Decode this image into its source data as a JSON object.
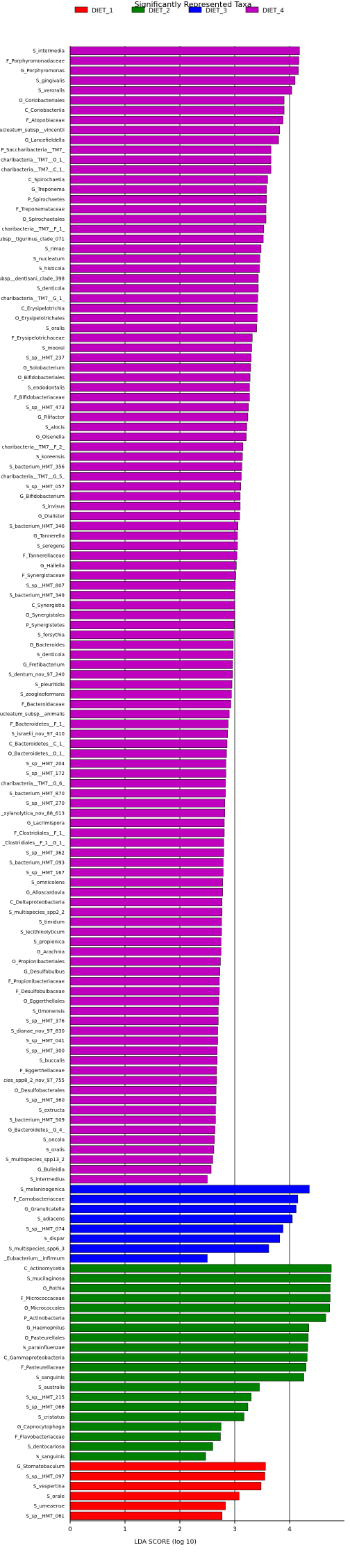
{
  "chart_data": {
    "type": "bar",
    "orientation": "horizontal",
    "title": "Significantly Represented Taxa",
    "xlabel": "LDA SCORE (log 10)",
    "ylabel": "",
    "xlim": [
      0,
      5.0
    ],
    "xticks": [
      0,
      1,
      2,
      3,
      4
    ],
    "grid": "vertical",
    "legend_position": "top",
    "colors": {
      "DIET_1": "#ff0000",
      "DIET_2": "#008000",
      "DIET_3": "#0000ff",
      "DIET_4": "#bf00bf"
    },
    "series": [
      {
        "name": "DIET_1",
        "color": "#ff0000"
      },
      {
        "name": "DIET_2",
        "color": "#008000"
      },
      {
        "name": "DIET_3",
        "color": "#0000ff"
      },
      {
        "name": "DIET_4",
        "color": "#bf00bf"
      }
    ],
    "bars": [
      {
        "label": "S_intermedia",
        "value": 4.18,
        "group": "DIET_4"
      },
      {
        "label": "F_Porphyromonadaceae",
        "value": 4.17,
        "group": "DIET_4"
      },
      {
        "label": "G_Porphyromonas",
        "value": 4.16,
        "group": "DIET_4"
      },
      {
        "label": "S_gingivalis",
        "value": 4.1,
        "group": "DIET_4"
      },
      {
        "label": "S_veroralis",
        "value": 4.04,
        "group": "DIET_4"
      },
      {
        "label": "O_Coriobacteriales",
        "value": 3.9,
        "group": "DIET_4"
      },
      {
        "label": "C_Coriobacteriia",
        "value": 3.9,
        "group": "DIET_4"
      },
      {
        "label": "F_Atopobiaceae",
        "value": 3.88,
        "group": "DIET_4"
      },
      {
        "label": "nucleatum_subsp__vincentii",
        "value": 3.82,
        "group": "DIET_4"
      },
      {
        "label": "G_Lancefieldella",
        "value": 3.8,
        "group": "DIET_4"
      },
      {
        "label": "P_Saccharibacteria__TM7_",
        "value": 3.66,
        "group": "DIET_4"
      },
      {
        "label": "charibacteria__TM7__O_1_",
        "value": 3.66,
        "group": "DIET_4"
      },
      {
        "label": "charibacteria__TM7__C_1_",
        "value": 3.66,
        "group": "DIET_4"
      },
      {
        "label": "C_Spirochaetia",
        "value": 3.6,
        "group": "DIET_4"
      },
      {
        "label": "G_Treponema",
        "value": 3.58,
        "group": "DIET_4"
      },
      {
        "label": "P_Spirochaetes",
        "value": 3.58,
        "group": "DIET_4"
      },
      {
        "label": "F_Treponemataceae",
        "value": 3.57,
        "group": "DIET_4"
      },
      {
        "label": "O_Spirochaetales",
        "value": 3.57,
        "group": "DIET_4"
      },
      {
        "label": "charibacteria__TM7__F_1_",
        "value": 3.53,
        "group": "DIET_4"
      },
      {
        "label": "subsp__tigurinus_clade_071",
        "value": 3.52,
        "group": "DIET_4"
      },
      {
        "label": "S_rimae",
        "value": 3.48,
        "group": "DIET_4"
      },
      {
        "label": "S_nucleatum",
        "value": 3.46,
        "group": "DIET_4"
      },
      {
        "label": "S_histicola",
        "value": 3.45,
        "group": "DIET_4"
      },
      {
        "label": "subsp__dentisani_clade_398",
        "value": 3.43,
        "group": "DIET_4"
      },
      {
        "label": "S_denticola",
        "value": 3.43,
        "group": "DIET_4"
      },
      {
        "label": "charibacteria__TM7__G_1_",
        "value": 3.42,
        "group": "DIET_4"
      },
      {
        "label": "C_Erysipelotrichia",
        "value": 3.41,
        "group": "DIET_4"
      },
      {
        "label": "O_Erysipelotrichales",
        "value": 3.41,
        "group": "DIET_4"
      },
      {
        "label": "S_oralis",
        "value": 3.4,
        "group": "DIET_4"
      },
      {
        "label": "F_Erysipelotrichaceae",
        "value": 3.32,
        "group": "DIET_4"
      },
      {
        "label": "S_moorei",
        "value": 3.31,
        "group": "DIET_4"
      },
      {
        "label": "S_sp__HMT_237",
        "value": 3.3,
        "group": "DIET_4"
      },
      {
        "label": "G_Solobacterium",
        "value": 3.29,
        "group": "DIET_4"
      },
      {
        "label": "O_Bifidobacteriales",
        "value": 3.28,
        "group": "DIET_4"
      },
      {
        "label": "S_endodontalis",
        "value": 3.27,
        "group": "DIET_4"
      },
      {
        "label": "F_Bifidobacteriaceae",
        "value": 3.27,
        "group": "DIET_4"
      },
      {
        "label": "S_sp__HMT_473",
        "value": 3.25,
        "group": "DIET_4"
      },
      {
        "label": "G_Filifactor",
        "value": 3.24,
        "group": "DIET_4"
      },
      {
        "label": "S_alocis",
        "value": 3.22,
        "group": "DIET_4"
      },
      {
        "label": "G_Olsenella",
        "value": 3.21,
        "group": "DIET_4"
      },
      {
        "label": "charibacteria__TM7__F_2_",
        "value": 3.15,
        "group": "DIET_4"
      },
      {
        "label": "S_koreensis",
        "value": 3.14,
        "group": "DIET_4"
      },
      {
        "label": "S_bacterium_HMT_356",
        "value": 3.13,
        "group": "DIET_4"
      },
      {
        "label": "charibacteria__TM7__G_5_",
        "value": 3.12,
        "group": "DIET_4"
      },
      {
        "label": "S_sp__HMT_057",
        "value": 3.11,
        "group": "DIET_4"
      },
      {
        "label": "G_Bifidobacterium",
        "value": 3.1,
        "group": "DIET_4"
      },
      {
        "label": "S_invisus",
        "value": 3.1,
        "group": "DIET_4"
      },
      {
        "label": "G_Dialister",
        "value": 3.09,
        "group": "DIET_4"
      },
      {
        "label": "S_bacterium_HMT_346",
        "value": 3.06,
        "group": "DIET_4"
      },
      {
        "label": "G_Tannerella",
        "value": 3.05,
        "group": "DIET_4"
      },
      {
        "label": "S_seregens",
        "value": 3.05,
        "group": "DIET_4"
      },
      {
        "label": "F_Tannerellaceae",
        "value": 3.04,
        "group": "DIET_4"
      },
      {
        "label": "G_Hallella",
        "value": 3.03,
        "group": "DIET_4"
      },
      {
        "label": "F_Synergistaceae",
        "value": 3.02,
        "group": "DIET_4"
      },
      {
        "label": "S_sp__HMT_807",
        "value": 3.01,
        "group": "DIET_4"
      },
      {
        "label": "S_bacterium_HMT_349",
        "value": 3.0,
        "group": "DIET_4"
      },
      {
        "label": "C_Synergistia",
        "value": 3.0,
        "group": "DIET_4"
      },
      {
        "label": "O_Synergistales",
        "value": 3.0,
        "group": "DIET_4"
      },
      {
        "label": "P_Synergistetes",
        "value": 2.99,
        "group": "DIET_4"
      },
      {
        "label": "S_forsythia",
        "value": 2.98,
        "group": "DIET_4"
      },
      {
        "label": "G_Bacteroides",
        "value": 2.97,
        "group": "DIET_4"
      },
      {
        "label": "S_denticola",
        "value": 2.97,
        "group": "DIET_4"
      },
      {
        "label": "G_Fretibacterium",
        "value": 2.96,
        "group": "DIET_4"
      },
      {
        "label": "S_dentum_nov_97_240",
        "value": 2.96,
        "group": "DIET_4"
      },
      {
        "label": "S_pleuritidis",
        "value": 2.95,
        "group": "DIET_4"
      },
      {
        "label": "S_zoogleoformans",
        "value": 2.94,
        "group": "DIET_4"
      },
      {
        "label": "F_Bacteroidaceae",
        "value": 2.93,
        "group": "DIET_4"
      },
      {
        "label": "nucleatum_subsp__animalis",
        "value": 2.9,
        "group": "DIET_4"
      },
      {
        "label": "F_Bacteroidetes__F_1_",
        "value": 2.88,
        "group": "DIET_4"
      },
      {
        "label": "S_israelii_nov_97_410",
        "value": 2.87,
        "group": "DIET_4"
      },
      {
        "label": "C_Bacteroidetes__C_1_",
        "value": 2.86,
        "group": "DIET_4"
      },
      {
        "label": "O_Bacteroidetes__O_1_",
        "value": 2.85,
        "group": "DIET_4"
      },
      {
        "label": "S_sp__HMT_204",
        "value": 2.84,
        "group": "DIET_4"
      },
      {
        "label": "S_sp__HMT_172",
        "value": 2.84,
        "group": "DIET_4"
      },
      {
        "label": "charibacteria__TM7__G_6_",
        "value": 2.83,
        "group": "DIET_4"
      },
      {
        "label": "S_bacterium_HMT_870",
        "value": 2.83,
        "group": "DIET_4"
      },
      {
        "label": "S_sp__HMT_270",
        "value": 2.82,
        "group": "DIET_4"
      },
      {
        "label": "_xylanolytica_nov_88_613",
        "value": 2.82,
        "group": "DIET_4"
      },
      {
        "label": "G_Lacrimispora",
        "value": 2.81,
        "group": "DIET_4"
      },
      {
        "label": "F_Clostridiales__F_1_",
        "value": 2.81,
        "group": "DIET_4"
      },
      {
        "label": "_Clostridiales__F_1__G_1_",
        "value": 2.8,
        "group": "DIET_4"
      },
      {
        "label": "S_sp__HMT_362",
        "value": 2.8,
        "group": "DIET_4"
      },
      {
        "label": "S_bacterium_HMT_093",
        "value": 2.79,
        "group": "DIET_4"
      },
      {
        "label": "S_sp__HMT_167",
        "value": 2.79,
        "group": "DIET_4"
      },
      {
        "label": "S_omnicolens",
        "value": 2.78,
        "group": "DIET_4"
      },
      {
        "label": "G_Alloscardovia",
        "value": 2.78,
        "group": "DIET_4"
      },
      {
        "label": "C_Deltaproteobacteria",
        "value": 2.77,
        "group": "DIET_4"
      },
      {
        "label": "S_multispecies_spp2_2",
        "value": 2.77,
        "group": "DIET_4"
      },
      {
        "label": "S_timidum",
        "value": 2.76,
        "group": "DIET_4"
      },
      {
        "label": "S_lecithinolyticum",
        "value": 2.76,
        "group": "DIET_4"
      },
      {
        "label": "S_propionica",
        "value": 2.75,
        "group": "DIET_4"
      },
      {
        "label": "G_Arachnia",
        "value": 2.75,
        "group": "DIET_4"
      },
      {
        "label": "O_Propionibacteriales",
        "value": 2.74,
        "group": "DIET_4"
      },
      {
        "label": "G_Desulfobulbus",
        "value": 2.73,
        "group": "DIET_4"
      },
      {
        "label": "F_Propionibacteriaceae",
        "value": 2.72,
        "group": "DIET_4"
      },
      {
        "label": "F_Desulfobulbaceae",
        "value": 2.72,
        "group": "DIET_4"
      },
      {
        "label": "O_Eggerthellales",
        "value": 2.71,
        "group": "DIET_4"
      },
      {
        "label": "S_timonensis",
        "value": 2.7,
        "group": "DIET_4"
      },
      {
        "label": "S_sp__HMT_376",
        "value": 2.7,
        "group": "DIET_4"
      },
      {
        "label": "S_dianae_nov_97_830",
        "value": 2.69,
        "group": "DIET_4"
      },
      {
        "label": "S_sp__HMT_041",
        "value": 2.69,
        "group": "DIET_4"
      },
      {
        "label": "S_sp__HMT_300",
        "value": 2.68,
        "group": "DIET_4"
      },
      {
        "label": "S_buccalis",
        "value": 2.68,
        "group": "DIET_4"
      },
      {
        "label": "F_Eggerthellaceae",
        "value": 2.67,
        "group": "DIET_4"
      },
      {
        "label": "cies_spp8_2_nov_97_755",
        "value": 2.67,
        "group": "DIET_4"
      },
      {
        "label": "O_Desulfobacterales",
        "value": 2.66,
        "group": "DIET_4"
      },
      {
        "label": "S_sp__HMT_360",
        "value": 2.66,
        "group": "DIET_4"
      },
      {
        "label": "S_extructa",
        "value": 2.65,
        "group": "DIET_4"
      },
      {
        "label": "S_bacterium_HMT_509",
        "value": 2.65,
        "group": "DIET_4"
      },
      {
        "label": "G_Bacteroidetes__G_4_",
        "value": 2.64,
        "group": "DIET_4"
      },
      {
        "label": "S_oncola",
        "value": 2.63,
        "group": "DIET_4"
      },
      {
        "label": "S_oralis",
        "value": 2.62,
        "group": "DIET_4"
      },
      {
        "label": "S_multispecies_spp13_2",
        "value": 2.6,
        "group": "DIET_4"
      },
      {
        "label": "G_Bulleidia",
        "value": 2.57,
        "group": "DIET_4"
      },
      {
        "label": "S_intermedius",
        "value": 2.5,
        "group": "DIET_4"
      },
      {
        "label": "S_melaninogenica",
        "value": 4.36,
        "group": "DIET_3"
      },
      {
        "label": "F_Carnobacteriaceae",
        "value": 4.15,
        "group": "DIET_3"
      },
      {
        "label": "G_Granulicatella",
        "value": 4.12,
        "group": "DIET_3"
      },
      {
        "label": "S_adiacens",
        "value": 4.05,
        "group": "DIET_3"
      },
      {
        "label": "S_sp__HMT_074",
        "value": 3.88,
        "group": "DIET_3"
      },
      {
        "label": "S_dispar",
        "value": 3.82,
        "group": "DIET_3"
      },
      {
        "label": "S_multispecies_spp6_3",
        "value": 3.62,
        "group": "DIET_3"
      },
      {
        "label": "_Eubacterium__infirmum",
        "value": 2.5,
        "group": "DIET_3"
      },
      {
        "label": "C_Actinomycetia",
        "value": 4.76,
        "group": "DIET_2"
      },
      {
        "label": "S_mucilaginosa",
        "value": 4.75,
        "group": "DIET_2"
      },
      {
        "label": "G_Rothia",
        "value": 4.74,
        "group": "DIET_2"
      },
      {
        "label": "F_Micrococcaceae",
        "value": 4.74,
        "group": "DIET_2"
      },
      {
        "label": "O_Micrococcales",
        "value": 4.73,
        "group": "DIET_2"
      },
      {
        "label": "P_Actinobacteria",
        "value": 4.66,
        "group": "DIET_2"
      },
      {
        "label": "G_Haemophilus",
        "value": 4.35,
        "group": "DIET_2"
      },
      {
        "label": "O_Pasteurellales",
        "value": 4.34,
        "group": "DIET_2"
      },
      {
        "label": "S_parainfluenzae",
        "value": 4.33,
        "group": "DIET_2"
      },
      {
        "label": "C_Gammaproteobacteria",
        "value": 4.32,
        "group": "DIET_2"
      },
      {
        "label": "F_Pasteurellaceae",
        "value": 4.3,
        "group": "DIET_2"
      },
      {
        "label": "S_sanguinis",
        "value": 4.26,
        "group": "DIET_2"
      },
      {
        "label": "S_australis",
        "value": 3.45,
        "group": "DIET_2"
      },
      {
        "label": "S_sp__HMT_215",
        "value": 3.3,
        "group": "DIET_2"
      },
      {
        "label": "S_sp__HMT_066",
        "value": 3.24,
        "group": "DIET_2"
      },
      {
        "label": "S_cristatus",
        "value": 3.17,
        "group": "DIET_2"
      },
      {
        "label": "G_Capnocytophaga",
        "value": 2.75,
        "group": "DIET_2"
      },
      {
        "label": "F_Flavobacteriaceae",
        "value": 2.74,
        "group": "DIET_2"
      },
      {
        "label": "S_dentocariosa",
        "value": 2.6,
        "group": "DIET_2"
      },
      {
        "label": "S_sanguinis",
        "value": 2.47,
        "group": "DIET_2"
      },
      {
        "label": "G_Stomatobaculum",
        "value": 3.56,
        "group": "DIET_1"
      },
      {
        "label": "S_sp__HMT_097",
        "value": 3.55,
        "group": "DIET_1"
      },
      {
        "label": "S_vespertina",
        "value": 3.48,
        "group": "DIET_1"
      },
      {
        "label": "S_orale",
        "value": 3.08,
        "group": "DIET_1"
      },
      {
        "label": "S_umeaense",
        "value": 2.83,
        "group": "DIET_1"
      },
      {
        "label": "S_sp__HMT_061",
        "value": 2.77,
        "group": "DIET_1"
      }
    ]
  }
}
